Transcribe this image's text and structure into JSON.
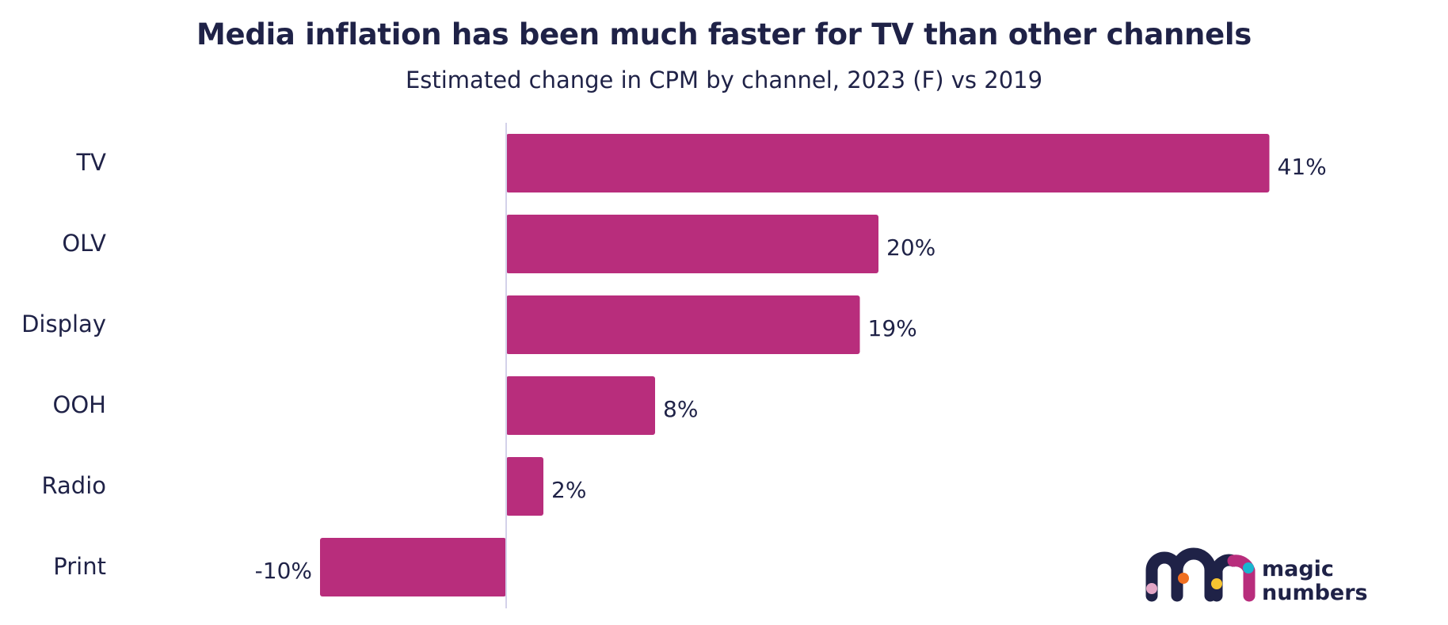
{
  "chart_data": {
    "type": "bar",
    "orientation": "horizontal",
    "title": "Media inflation has been much faster for TV than other channels",
    "subtitle": "Estimated change in CPM by channel, 2023 (F) vs 2019",
    "xlabel": "",
    "ylabel": "",
    "categories": [
      "TV",
      "OLV",
      "Display",
      "OOH",
      "Radio",
      "Print"
    ],
    "values": [
      41,
      20,
      19,
      8,
      2,
      -10
    ],
    "value_labels": [
      "41%",
      "20%",
      "19%",
      "8%",
      "2%",
      "-10%"
    ],
    "unit": "%",
    "xlim": [
      -18.5,
      55
    ],
    "grid": false,
    "legend": "none",
    "bar_color": "#b82d7c",
    "zero_line_color": "#d4d2ea"
  },
  "brand": {
    "line1": "magic",
    "line2": "numbers",
    "colors": {
      "navy": "#1f2247",
      "magenta": "#b82d7c",
      "pink": "#e3a6c6",
      "orange": "#f07022",
      "yellow": "#f7c531",
      "cyan": "#19b5cf"
    }
  }
}
